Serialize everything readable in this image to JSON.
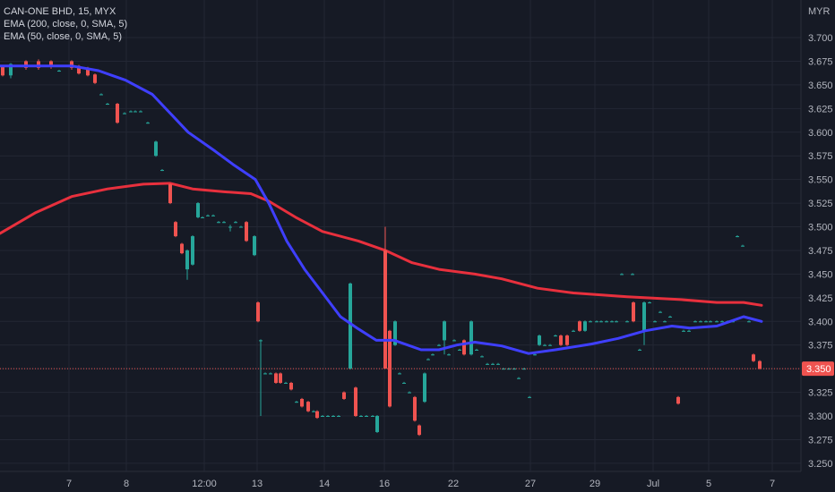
{
  "header": {
    "symbol": "CAN-ONE BHD, 15, MYX",
    "ema200": "EMA (200, close, 0, SMA, 5)",
    "ema50": "EMA (50, close, 0, SMA, 5)",
    "currency": "MYR"
  },
  "chart_data": {
    "type": "candlestick",
    "y_ticks": [
      "3.700",
      "3.675",
      "3.650",
      "3.625",
      "3.600",
      "3.575",
      "3.550",
      "3.525",
      "3.500",
      "3.475",
      "3.450",
      "3.425",
      "3.400",
      "3.375",
      "3.350",
      "3.325",
      "3.300",
      "3.275",
      "3.250"
    ],
    "ylim": [
      3.24,
      3.71
    ],
    "x_ticks": [
      {
        "label": "7",
        "x": 77
      },
      {
        "label": "8",
        "x": 141
      },
      {
        "label": "12:00",
        "x": 228
      },
      {
        "label": "13",
        "x": 287
      },
      {
        "label": "14",
        "x": 362
      },
      {
        "label": "16",
        "x": 429
      },
      {
        "label": "22",
        "x": 506
      },
      {
        "label": "27",
        "x": 592
      },
      {
        "label": "29",
        "x": 664
      },
      {
        "label": "Jul",
        "x": 729
      },
      {
        "label": "5",
        "x": 791
      },
      {
        "label": "7",
        "x": 862
      }
    ],
    "last_price": "3.350",
    "last_value": 3.35,
    "colors": {
      "up": "#26a69a",
      "down": "#ef5350",
      "ema200": "#e8303d",
      "ema50": "#3f3fff",
      "background": "#161a25",
      "grid": "#232734",
      "price_line": "#ef5350"
    },
    "candles": [
      [
        3,
        3.67,
        3.66,
        3.671,
        3.659
      ],
      [
        12,
        3.66,
        3.672,
        3.673,
        3.657
      ],
      [
        18,
        3.67,
        3.67,
        3.671,
        3.669
      ],
      [
        22,
        3.67,
        3.67,
        3.671,
        3.669
      ],
      [
        29,
        3.675,
        3.668,
        3.676,
        3.666
      ],
      [
        36,
        3.67,
        3.67,
        3.671,
        3.669
      ],
      [
        43,
        3.675,
        3.668,
        3.677,
        3.666
      ],
      [
        49,
        3.67,
        3.67,
        3.671,
        3.669
      ],
      [
        57,
        3.675,
        3.669,
        3.676,
        3.667
      ],
      [
        63,
        3.67,
        3.67,
        3.671,
        3.669
      ],
      [
        66,
        3.665,
        3.665,
        3.666,
        3.664
      ],
      [
        73,
        3.67,
        3.67,
        3.671,
        3.669
      ],
      [
        80,
        3.675,
        3.668,
        3.676,
        3.666
      ],
      [
        88,
        3.67,
        3.662,
        3.671,
        3.661
      ],
      [
        98,
        3.668,
        3.66,
        3.669,
        3.659
      ],
      [
        106,
        3.661,
        3.652,
        3.662,
        3.651
      ],
      [
        113,
        3.64,
        3.64,
        3.641,
        3.639
      ],
      [
        120,
        3.63,
        3.63,
        3.631,
        3.629
      ],
      [
        131,
        3.63,
        3.61,
        3.631,
        3.609
      ],
      [
        139,
        3.62,
        3.62,
        3.621,
        3.619
      ],
      [
        146,
        3.622,
        3.622,
        3.623,
        3.621
      ],
      [
        151,
        3.622,
        3.622,
        3.623,
        3.621
      ],
      [
        157,
        3.622,
        3.622,
        3.623,
        3.621
      ],
      [
        165,
        3.61,
        3.61,
        3.611,
        3.609
      ],
      [
        174,
        3.575,
        3.59,
        3.591,
        3.574
      ],
      [
        181,
        3.56,
        3.56,
        3.561,
        3.559
      ],
      [
        190,
        3.545,
        3.525,
        3.546,
        3.524
      ],
      [
        196,
        3.505,
        3.49,
        3.506,
        3.489
      ],
      [
        203,
        3.482,
        3.472,
        3.483,
        3.471
      ],
      [
        209,
        3.455,
        3.475,
        3.476,
        3.444
      ],
      [
        215,
        3.46,
        3.49,
        3.491,
        3.459
      ],
      [
        221,
        3.51,
        3.525,
        3.526,
        3.509
      ],
      [
        226,
        3.51,
        3.51,
        3.511,
        3.509
      ],
      [
        232,
        3.512,
        3.512,
        3.513,
        3.511
      ],
      [
        238,
        3.512,
        3.512,
        3.513,
        3.511
      ],
      [
        244,
        3.505,
        3.505,
        3.506,
        3.504
      ],
      [
        250,
        3.505,
        3.505,
        3.506,
        3.504
      ],
      [
        257,
        3.5,
        3.5,
        3.502,
        3.495
      ],
      [
        263,
        3.505,
        3.505,
        3.506,
        3.504
      ],
      [
        269,
        3.5,
        3.5,
        3.501,
        3.499
      ],
      [
        275,
        3.505,
        3.485,
        3.506,
        3.484
      ],
      [
        284,
        3.47,
        3.49,
        3.491,
        3.469
      ],
      [
        288,
        3.42,
        3.4,
        3.421,
        3.399
      ],
      [
        291,
        3.38,
        3.38,
        3.381,
        3.3
      ],
      [
        296,
        3.345,
        3.345,
        3.346,
        3.344
      ],
      [
        302,
        3.345,
        3.345,
        3.346,
        3.344
      ],
      [
        308,
        3.345,
        3.335,
        3.346,
        3.334
      ],
      [
        313,
        3.345,
        3.335,
        3.346,
        3.334
      ],
      [
        319,
        3.335,
        3.335,
        3.336,
        3.334
      ],
      [
        325,
        3.335,
        3.328,
        3.336,
        3.327
      ],
      [
        331,
        3.315,
        3.315,
        3.316,
        3.314
      ],
      [
        337,
        3.318,
        3.31,
        3.319,
        3.309
      ],
      [
        344,
        3.315,
        3.305,
        3.316,
        3.304
      ],
      [
        350,
        3.305,
        3.305,
        3.306,
        3.304
      ],
      [
        354,
        3.305,
        3.298,
        3.306,
        3.297
      ],
      [
        360,
        3.3,
        3.3,
        3.301,
        3.299
      ],
      [
        366,
        3.3,
        3.3,
        3.301,
        3.299
      ],
      [
        372,
        3.3,
        3.3,
        3.301,
        3.299
      ],
      [
        378,
        3.3,
        3.3,
        3.301,
        3.299
      ],
      [
        384,
        3.325,
        3.318,
        3.326,
        3.317
      ],
      [
        391,
        3.35,
        3.44,
        3.441,
        3.349
      ],
      [
        397,
        3.33,
        3.3,
        3.331,
        3.299
      ],
      [
        403,
        3.3,
        3.3,
        3.301,
        3.299
      ],
      [
        409,
        3.3,
        3.3,
        3.301,
        3.299
      ],
      [
        416,
        3.3,
        3.3,
        3.301,
        3.299
      ],
      [
        421,
        3.283,
        3.3,
        3.301,
        3.282
      ],
      [
        426,
        3.38,
        3.38,
        3.381,
        3.379
      ],
      [
        430,
        3.475,
        3.35,
        3.5,
        3.35
      ],
      [
        435,
        3.39,
        3.31,
        3.391,
        3.309
      ],
      [
        441,
        3.375,
        3.4,
        3.401,
        3.374
      ],
      [
        446,
        3.345,
        3.345,
        3.346,
        3.344
      ],
      [
        451,
        3.335,
        3.335,
        3.336,
        3.334
      ],
      [
        457,
        3.325,
        3.325,
        3.326,
        3.324
      ],
      [
        463,
        3.32,
        3.295,
        3.321,
        3.294
      ],
      [
        468,
        3.29,
        3.28,
        3.291,
        3.279
      ],
      [
        474,
        3.315,
        3.345,
        3.346,
        3.314
      ],
      [
        478,
        3.36,
        3.36,
        3.361,
        3.359
      ],
      [
        483,
        3.365,
        3.365,
        3.366,
        3.364
      ],
      [
        490,
        3.375,
        3.375,
        3.376,
        3.374
      ],
      [
        496,
        3.38,
        3.4,
        3.401,
        3.365
      ],
      [
        501,
        3.365,
        3.365,
        3.366,
        3.364
      ],
      [
        507,
        3.38,
        3.38,
        3.381,
        3.379
      ],
      [
        513,
        3.37,
        3.37,
        3.371,
        3.369
      ],
      [
        518,
        3.38,
        3.365,
        3.381,
        3.364
      ],
      [
        526,
        3.365,
        3.4,
        3.401,
        3.364
      ],
      [
        532,
        3.37,
        3.37,
        3.371,
        3.369
      ],
      [
        538,
        3.363,
        3.363,
        3.364,
        3.362
      ],
      [
        544,
        3.355,
        3.355,
        3.356,
        3.354
      ],
      [
        550,
        3.355,
        3.355,
        3.356,
        3.354
      ],
      [
        556,
        3.355,
        3.355,
        3.356,
        3.354
      ],
      [
        562,
        3.35,
        3.35,
        3.351,
        3.349
      ],
      [
        568,
        3.35,
        3.35,
        3.351,
        3.349
      ],
      [
        574,
        3.35,
        3.35,
        3.351,
        3.349
      ],
      [
        579,
        3.34,
        3.34,
        3.341,
        3.339
      ],
      [
        585,
        3.35,
        3.35,
        3.351,
        3.349
      ],
      [
        591,
        3.32,
        3.32,
        3.321,
        3.319
      ],
      [
        597,
        3.365,
        3.365,
        3.366,
        3.364
      ],
      [
        602,
        3.375,
        3.385,
        3.386,
        3.374
      ],
      [
        608,
        3.375,
        3.375,
        3.376,
        3.374
      ],
      [
        614,
        3.375,
        3.375,
        3.376,
        3.374
      ],
      [
        620,
        3.385,
        3.385,
        3.386,
        3.384
      ],
      [
        626,
        3.385,
        3.375,
        3.386,
        3.374
      ],
      [
        633,
        3.385,
        3.375,
        3.386,
        3.374
      ],
      [
        640,
        3.39,
        3.39,
        3.391,
        3.389
      ],
      [
        647,
        3.4,
        3.39,
        3.401,
        3.389
      ],
      [
        653,
        3.39,
        3.4,
        3.401,
        3.389
      ],
      [
        659,
        3.4,
        3.4,
        3.401,
        3.399
      ],
      [
        666,
        3.4,
        3.4,
        3.401,
        3.399
      ],
      [
        671,
        3.4,
        3.4,
        3.401,
        3.399
      ],
      [
        677,
        3.4,
        3.4,
        3.401,
        3.399
      ],
      [
        683,
        3.4,
        3.4,
        3.401,
        3.399
      ],
      [
        688,
        3.4,
        3.4,
        3.401,
        3.399
      ],
      [
        694,
        3.45,
        3.45,
        3.451,
        3.449
      ],
      [
        700,
        3.4,
        3.4,
        3.401,
        3.399
      ],
      [
        706,
        3.45,
        3.45,
        3.451,
        3.449
      ],
      [
        707,
        3.42,
        3.4,
        3.421,
        3.399
      ],
      [
        714,
        3.37,
        3.37,
        3.371,
        3.369
      ],
      [
        719,
        3.39,
        3.42,
        3.421,
        3.375
      ],
      [
        725,
        3.42,
        3.42,
        3.421,
        3.419
      ],
      [
        731,
        3.4,
        3.4,
        3.401,
        3.399
      ],
      [
        737,
        3.41,
        3.41,
        3.411,
        3.409
      ],
      [
        742,
        3.4,
        3.4,
        3.401,
        3.399
      ],
      [
        748,
        3.405,
        3.405,
        3.406,
        3.404
      ],
      [
        757,
        3.32,
        3.313,
        3.321,
        3.312
      ],
      [
        763,
        3.39,
        3.39,
        3.391,
        3.389
      ],
      [
        769,
        3.39,
        3.39,
        3.391,
        3.389
      ],
      [
        776,
        3.4,
        3.4,
        3.401,
        3.399
      ],
      [
        782,
        3.4,
        3.4,
        3.401,
        3.399
      ],
      [
        788,
        3.4,
        3.4,
        3.401,
        3.399
      ],
      [
        793,
        3.4,
        3.4,
        3.401,
        3.399
      ],
      [
        800,
        3.4,
        3.4,
        3.401,
        3.399
      ],
      [
        806,
        3.4,
        3.4,
        3.401,
        3.399
      ],
      [
        812,
        3.4,
        3.4,
        3.401,
        3.399
      ],
      [
        818,
        3.4,
        3.4,
        3.401,
        3.399
      ],
      [
        823,
        3.49,
        3.49,
        3.491,
        3.489
      ],
      [
        829,
        3.48,
        3.48,
        3.481,
        3.479
      ],
      [
        836,
        3.4,
        3.4,
        3.401,
        3.399
      ],
      [
        841,
        3.365,
        3.358,
        3.366,
        3.357
      ],
      [
        848,
        3.358,
        3.35,
        3.359,
        3.349
      ]
    ],
    "ema200": [
      [
        0,
        3.493
      ],
      [
        40,
        3.515
      ],
      [
        80,
        3.532
      ],
      [
        120,
        3.54
      ],
      [
        160,
        3.545
      ],
      [
        190,
        3.546
      ],
      [
        215,
        3.54
      ],
      [
        250,
        3.537
      ],
      [
        280,
        3.535
      ],
      [
        300,
        3.527
      ],
      [
        330,
        3.51
      ],
      [
        360,
        3.495
      ],
      [
        400,
        3.485
      ],
      [
        430,
        3.475
      ],
      [
        460,
        3.462
      ],
      [
        490,
        3.455
      ],
      [
        530,
        3.45
      ],
      [
        560,
        3.445
      ],
      [
        600,
        3.435
      ],
      [
        640,
        3.43
      ],
      [
        700,
        3.426
      ],
      [
        760,
        3.423
      ],
      [
        800,
        3.42
      ],
      [
        830,
        3.42
      ],
      [
        850,
        3.417
      ]
    ],
    "ema50": [
      [
        0,
        3.67
      ],
      [
        50,
        3.67
      ],
      [
        80,
        3.67
      ],
      [
        110,
        3.665
      ],
      [
        140,
        3.655
      ],
      [
        170,
        3.64
      ],
      [
        190,
        3.62
      ],
      [
        210,
        3.6
      ],
      [
        240,
        3.58
      ],
      [
        260,
        3.566
      ],
      [
        285,
        3.55
      ],
      [
        300,
        3.525
      ],
      [
        320,
        3.485
      ],
      [
        340,
        3.455
      ],
      [
        360,
        3.43
      ],
      [
        380,
        3.405
      ],
      [
        400,
        3.392
      ],
      [
        420,
        3.38
      ],
      [
        440,
        3.38
      ],
      [
        470,
        3.37
      ],
      [
        490,
        3.37
      ],
      [
        510,
        3.375
      ],
      [
        530,
        3.378
      ],
      [
        560,
        3.374
      ],
      [
        590,
        3.366
      ],
      [
        620,
        3.37
      ],
      [
        660,
        3.376
      ],
      [
        690,
        3.382
      ],
      [
        720,
        3.39
      ],
      [
        750,
        3.395
      ],
      [
        770,
        3.393
      ],
      [
        800,
        3.395
      ],
      [
        815,
        3.4
      ],
      [
        830,
        3.405
      ],
      [
        850,
        3.4
      ]
    ]
  }
}
